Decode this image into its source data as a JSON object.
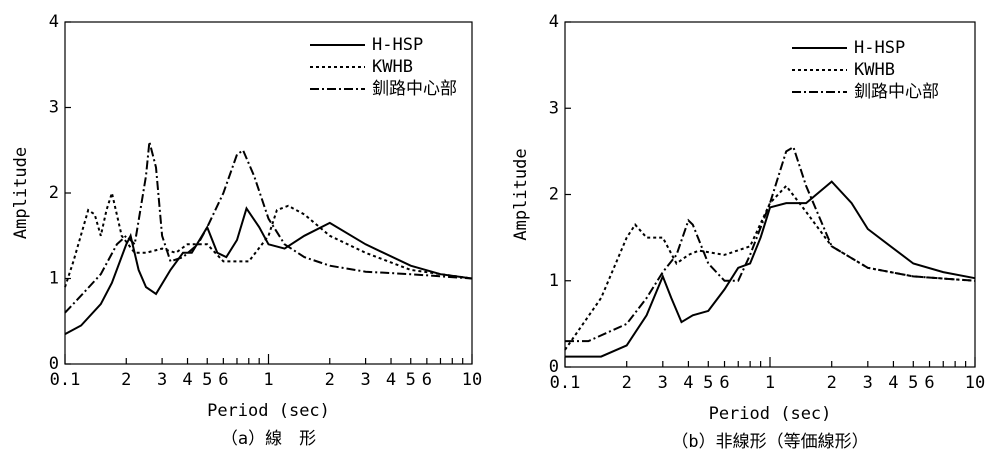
{
  "chart_data": [
    {
      "type": "line",
      "caption": "（a）線　形",
      "xlabel": "Period (sec)",
      "ylabel": "Amplitude",
      "xscale": "log",
      "legend": "upper right",
      "xlim": [
        0.1,
        10
      ],
      "ylim": [
        0,
        4
      ],
      "yticks": [
        0,
        1,
        2,
        3,
        4
      ],
      "xticks": [
        0.1,
        {
          "value": 0.2,
          "label": "2"
        },
        {
          "value": 0.3,
          "label": "3"
        },
        {
          "value": 0.4,
          "label": "4"
        },
        {
          "value": 0.5,
          "label": "5"
        },
        {
          "value": 0.6,
          "label": "6"
        },
        1,
        {
          "value": 2,
          "label": "2"
        },
        {
          "value": 3,
          "label": "3"
        },
        {
          "value": 4,
          "label": "4"
        },
        {
          "value": 5,
          "label": "5"
        },
        {
          "value": 6,
          "label": "6"
        },
        10
      ],
      "xminorticks": [
        0.7,
        0.8,
        0.9,
        7,
        8,
        9
      ],
      "series": [
        {
          "name": "H-HSP",
          "color": "#000000",
          "dash": "solid",
          "x": [
            0.1,
            0.12,
            0.15,
            0.17,
            0.2,
            0.21,
            0.23,
            0.25,
            0.28,
            0.33,
            0.38,
            0.42,
            0.5,
            0.56,
            0.62,
            0.7,
            0.78,
            0.9,
            1.0,
            1.2,
            1.5,
            2,
            3,
            5,
            7,
            10
          ],
          "values": [
            0.35,
            0.45,
            0.7,
            0.95,
            1.4,
            1.5,
            1.1,
            0.9,
            0.82,
            1.1,
            1.3,
            1.3,
            1.6,
            1.3,
            1.25,
            1.45,
            1.82,
            1.6,
            1.4,
            1.35,
            1.5,
            1.65,
            1.4,
            1.15,
            1.05,
            1.0
          ]
        },
        {
          "name": "KWHB",
          "color": "#000000",
          "dash": "dotted",
          "x": [
            0.1,
            0.11,
            0.13,
            0.14,
            0.15,
            0.16,
            0.17,
            0.19,
            0.22,
            0.25,
            0.3,
            0.35,
            0.4,
            0.5,
            0.6,
            0.8,
            1.0,
            1.1,
            1.25,
            1.5,
            2,
            3,
            5,
            10
          ],
          "values": [
            0.9,
            1.2,
            1.8,
            1.75,
            1.5,
            1.8,
            2.0,
            1.5,
            1.3,
            1.3,
            1.35,
            1.3,
            1.4,
            1.4,
            1.2,
            1.2,
            1.5,
            1.8,
            1.85,
            1.75,
            1.5,
            1.3,
            1.1,
            1.0
          ]
        },
        {
          "name": "釧路中心部",
          "color": "#000000",
          "dash": "dashdot",
          "x": [
            0.1,
            0.12,
            0.15,
            0.18,
            0.2,
            0.22,
            0.25,
            0.26,
            0.28,
            0.3,
            0.33,
            0.38,
            0.45,
            0.5,
            0.6,
            0.7,
            0.75,
            0.85,
            1.0,
            1.2,
            1.5,
            2,
            3,
            5,
            10
          ],
          "values": [
            0.6,
            0.8,
            1.05,
            1.4,
            1.5,
            1.4,
            2.2,
            2.6,
            2.3,
            1.5,
            1.2,
            1.25,
            1.4,
            1.6,
            2.0,
            2.45,
            2.5,
            2.2,
            1.7,
            1.4,
            1.25,
            1.15,
            1.08,
            1.05,
            1.0
          ]
        }
      ]
    },
    {
      "type": "line",
      "caption": "（b）非線形（等価線形）",
      "xlabel": "Period (sec)",
      "ylabel": "Amplitude",
      "xscale": "log",
      "legend": "upper right",
      "xlim": [
        0.1,
        10
      ],
      "ylim": [
        0,
        4
      ],
      "yticks": [
        0,
        1,
        2,
        3,
        4
      ],
      "xticks": [
        0.1,
        {
          "value": 0.2,
          "label": "2"
        },
        {
          "value": 0.3,
          "label": "3"
        },
        {
          "value": 0.4,
          "label": "4"
        },
        {
          "value": 0.5,
          "label": "5"
        },
        {
          "value": 0.6,
          "label": "6"
        },
        1,
        {
          "value": 2,
          "label": "2"
        },
        {
          "value": 3,
          "label": "3"
        },
        {
          "value": 4,
          "label": "4"
        },
        {
          "value": 5,
          "label": "5"
        },
        {
          "value": 6,
          "label": "6"
        },
        10
      ],
      "xminorticks": [
        0.7,
        0.8,
        0.9,
        7,
        8,
        9
      ],
      "series": [
        {
          "name": "H-HSP",
          "color": "#000000",
          "dash": "solid",
          "x": [
            0.1,
            0.15,
            0.2,
            0.25,
            0.3,
            0.33,
            0.37,
            0.42,
            0.5,
            0.6,
            0.7,
            0.8,
            0.9,
            1.0,
            1.2,
            1.5,
            2,
            2.5,
            3,
            5,
            7,
            10
          ],
          "values": [
            0.12,
            0.12,
            0.25,
            0.6,
            1.05,
            0.8,
            0.52,
            0.6,
            0.65,
            0.9,
            1.15,
            1.2,
            1.5,
            1.85,
            1.9,
            1.9,
            2.15,
            1.9,
            1.6,
            1.2,
            1.1,
            1.03
          ]
        },
        {
          "name": "KWHB",
          "color": "#000000",
          "dash": "dotted",
          "x": [
            0.1,
            0.15,
            0.2,
            0.22,
            0.25,
            0.3,
            0.35,
            0.4,
            0.45,
            0.6,
            0.8,
            1.0,
            1.2,
            1.5,
            2,
            3,
            5,
            10
          ],
          "values": [
            0.2,
            0.8,
            1.5,
            1.65,
            1.5,
            1.5,
            1.2,
            1.3,
            1.35,
            1.3,
            1.4,
            1.9,
            2.1,
            1.8,
            1.4,
            1.15,
            1.05,
            1.0
          ]
        },
        {
          "name": "釧路中心部",
          "color": "#000000",
          "dash": "dashdot",
          "x": [
            0.1,
            0.13,
            0.2,
            0.25,
            0.3,
            0.35,
            0.4,
            0.42,
            0.5,
            0.6,
            0.7,
            0.8,
            1.0,
            1.2,
            1.3,
            1.5,
            2,
            3,
            5,
            10
          ],
          "values": [
            0.3,
            0.3,
            0.5,
            0.8,
            1.1,
            1.3,
            1.7,
            1.65,
            1.2,
            1.0,
            1.0,
            1.3,
            1.9,
            2.5,
            2.55,
            2.1,
            1.4,
            1.15,
            1.05,
            1.0
          ]
        }
      ]
    }
  ]
}
